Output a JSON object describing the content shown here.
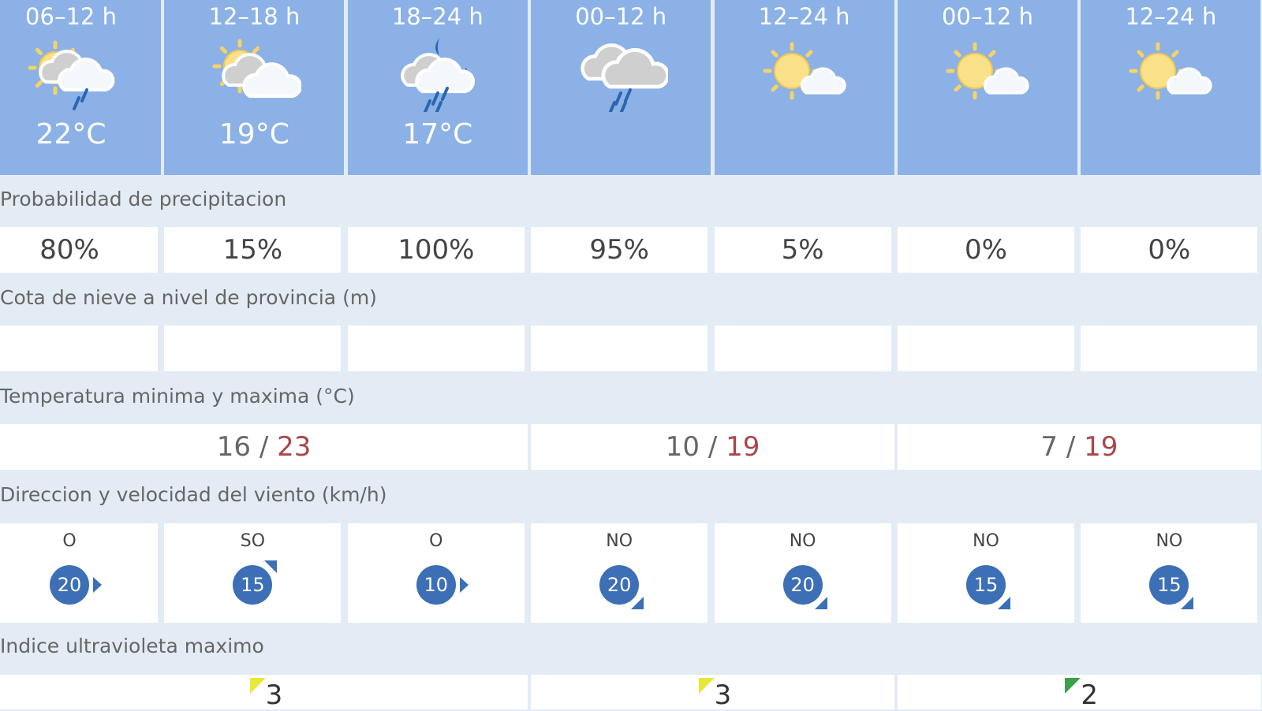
{
  "periods": [
    {
      "label": "06–12 h",
      "icon": "sun-cloud-rain-icon",
      "temp": "22°C"
    },
    {
      "label": "12–18 h",
      "icon": "sun-cloud-icon",
      "temp": "19°C"
    },
    {
      "label": "18–24 h",
      "icon": "moon-cloud-rain-icon",
      "temp": "17°C"
    },
    {
      "label": "00–12 h",
      "icon": "cloud-rain-icon",
      "temp": ""
    },
    {
      "label": "12–24 h",
      "icon": "sun-small-cloud-icon",
      "temp": ""
    },
    {
      "label": "00–12 h",
      "icon": "sun-small-cloud-icon",
      "temp": ""
    },
    {
      "label": "12–24 h",
      "icon": "sun-small-cloud-icon",
      "temp": ""
    }
  ],
  "precip": {
    "label": "Probabilidad de precipitacion",
    "values": [
      "80%",
      "15%",
      "100%",
      "95%",
      "5%",
      "0%",
      "0%"
    ]
  },
  "snow": {
    "label": "Cota de nieve a nivel de provincia (m)",
    "values": [
      "",
      "",
      "",
      "",
      "",
      "",
      ""
    ]
  },
  "temps": {
    "label": "Temperatura minima y maxima (°C)",
    "days": [
      {
        "min": "16",
        "max": "23"
      },
      {
        "min": "10",
        "max": "19"
      },
      {
        "min": "7",
        "max": "19"
      }
    ]
  },
  "wind": {
    "label": "Direccion y velocidad del viento (km/h)",
    "values": [
      {
        "dir": "O",
        "speed": "20",
        "arrow": "e"
      },
      {
        "dir": "SO",
        "speed": "15",
        "arrow": "ne"
      },
      {
        "dir": "O",
        "speed": "10",
        "arrow": "e"
      },
      {
        "dir": "NO",
        "speed": "20",
        "arrow": "se"
      },
      {
        "dir": "NO",
        "speed": "20",
        "arrow": "se"
      },
      {
        "dir": "NO",
        "speed": "15",
        "arrow": "se"
      },
      {
        "dir": "NO",
        "speed": "15",
        "arrow": "se"
      }
    ]
  },
  "uv": {
    "label": "Indice ultravioleta maximo",
    "days": [
      {
        "value": "3",
        "color": "#e8e83a"
      },
      {
        "value": "3",
        "color": "#e8e83a"
      },
      {
        "value": "2",
        "color": "#3aa04a"
      }
    ]
  },
  "colors": {
    "header": "#8cb1e6",
    "wind": "#3c6fb5",
    "max_temp": "#a8474a"
  }
}
